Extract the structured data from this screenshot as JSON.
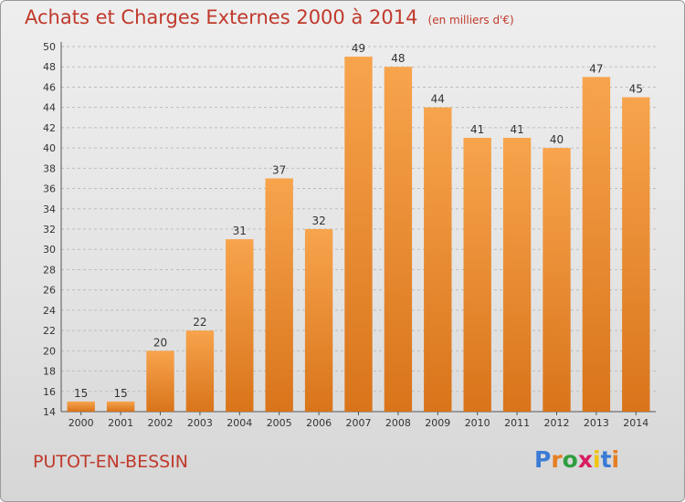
{
  "header": {
    "title": "Achats et Charges Externes 2000 à 2014",
    "subtitle": "(en milliers d'€)"
  },
  "footer": {
    "commune": "PUTOT-EN-BESSIN",
    "logo_letters": [
      "P",
      "r",
      "o",
      "x",
      "i",
      "t",
      "i"
    ],
    "logo_colors": [
      "#3a7bd5",
      "#e67e22",
      "#2e9e3e",
      "#d81b60",
      "#f1c40f",
      "#3a7bd5",
      "#e67e22"
    ]
  },
  "chart_data": {
    "type": "bar",
    "categories": [
      "2000",
      "2001",
      "2002",
      "2003",
      "2004",
      "2005",
      "2006",
      "2007",
      "2008",
      "2009",
      "2010",
      "2011",
      "2012",
      "2013",
      "2014"
    ],
    "values": [
      15,
      15,
      20,
      22,
      31,
      37,
      32,
      49,
      48,
      44,
      41,
      41,
      40,
      47,
      45
    ],
    "title": "Achats et Charges Externes 2000 à 2014",
    "subtitle": "(en milliers d'€)",
    "ylim": [
      14,
      50
    ],
    "yticks": [
      14,
      16,
      18,
      20,
      22,
      24,
      26,
      28,
      30,
      32,
      34,
      36,
      38,
      40,
      42,
      44,
      46,
      48,
      50
    ],
    "grid": "horizontal-dashed",
    "bar_color_light": "#f7a44d",
    "bar_color_dark": "#d9741a"
  }
}
